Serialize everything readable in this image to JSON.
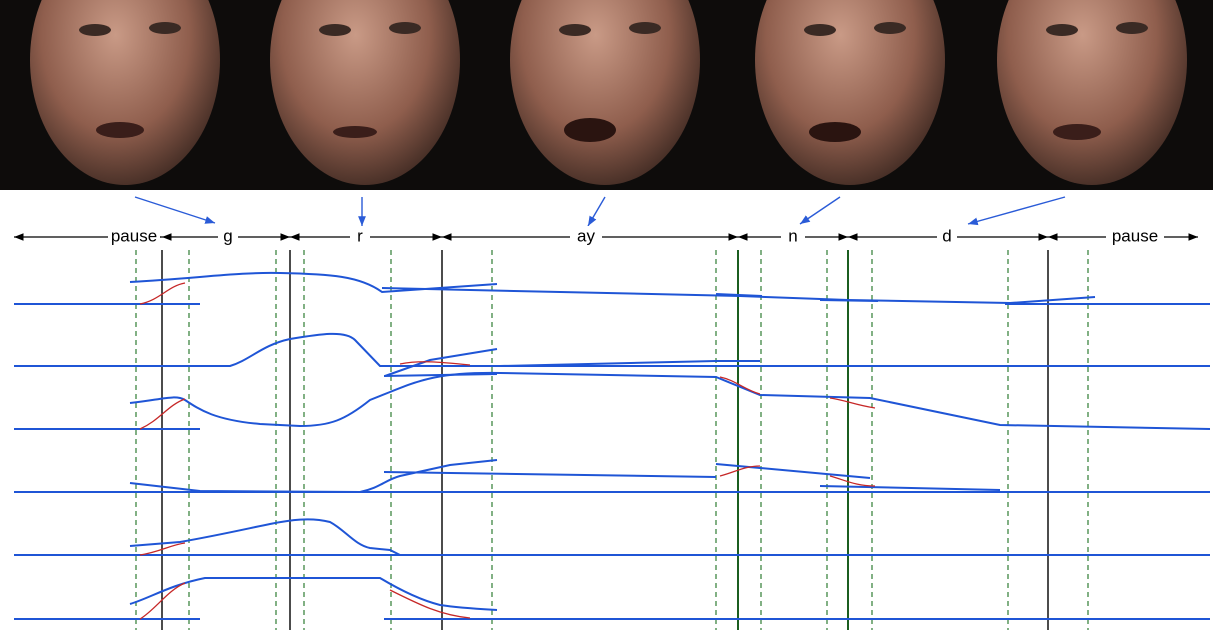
{
  "phonemes": [
    "pause",
    "g",
    "r",
    "ay",
    "n",
    "d",
    "pause"
  ]
}
